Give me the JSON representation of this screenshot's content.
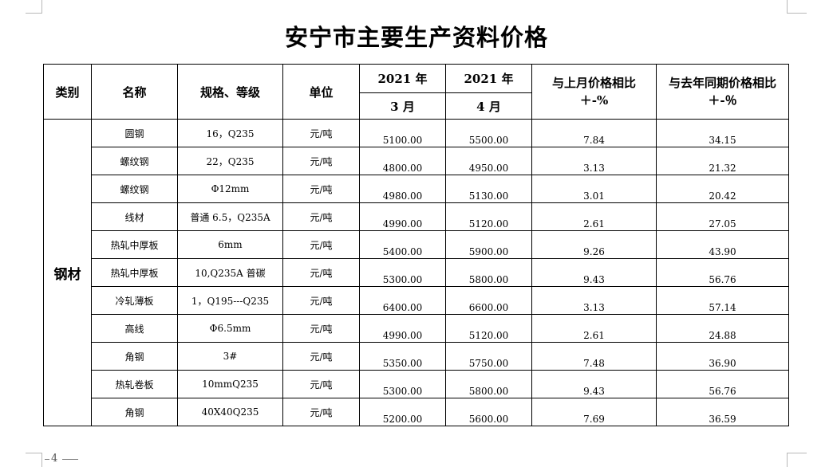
{
  "title": "安宁市主要生产资料价格",
  "header": {
    "category": "类别",
    "name": "名称",
    "spec": "规格、等级",
    "unit": "单位",
    "year_a": "2021 年",
    "year_b": "2021 年",
    "month_a": "3 月",
    "month_b": "4 月",
    "mom_line1": "与上月价格相比",
    "mom_line2": "＋-%",
    "yoy_line1": "与去年同期价格相比",
    "yoy_line2": "＋-％"
  },
  "category": "钢材",
  "rows": [
    {
      "name": "圆钢",
      "spec": "16，Q235",
      "unit": "元/吨",
      "mar": "5100.00",
      "apr": "5500.00",
      "mom": "7.84",
      "yoy": "34.15"
    },
    {
      "name": "螺纹钢",
      "spec": "22，Q235",
      "unit": "元/吨",
      "mar": "4800.00",
      "apr": "4950.00",
      "mom": "3.13",
      "yoy": "21.32"
    },
    {
      "name": "螺纹钢",
      "spec": "Φ12mm",
      "unit": "元/吨",
      "mar": "4980.00",
      "apr": "5130.00",
      "mom": "3.01",
      "yoy": "20.42"
    },
    {
      "name": "线材",
      "spec": "普通 6.5，Q235A",
      "unit": "元/吨",
      "mar": "4990.00",
      "apr": "5120.00",
      "mom": "2.61",
      "yoy": "27.05"
    },
    {
      "name": "热轧中厚板",
      "spec": "6mm",
      "unit": "元/吨",
      "mar": "5400.00",
      "apr": "5900.00",
      "mom": "9.26",
      "yoy": "43.90"
    },
    {
      "name": "热轧中厚板",
      "spec": "10,Q235A 普碳",
      "unit": "元/吨",
      "mar": "5300.00",
      "apr": "5800.00",
      "mom": "9.43",
      "yoy": "56.76"
    },
    {
      "name": "冷轧薄板",
      "spec": "1，Q195---Q235",
      "unit": "元/吨",
      "mar": "6400.00",
      "apr": "6600.00",
      "mom": "3.13",
      "yoy": "57.14"
    },
    {
      "name": "高线",
      "spec": "Φ6.5mm",
      "unit": "元/吨",
      "mar": "4990.00",
      "apr": "5120.00",
      "mom": "2.61",
      "yoy": "24.88"
    },
    {
      "name": "角钢",
      "spec": "3#",
      "unit": "元/吨",
      "mar": "5350.00",
      "apr": "5750.00",
      "mom": "7.48",
      "yoy": "36.90"
    },
    {
      "name": "热轧卷板",
      "spec": "10mmQ235",
      "unit": "元/吨",
      "mar": "5300.00",
      "apr": "5800.00",
      "mom": "9.43",
      "yoy": "56.76"
    },
    {
      "name": "角钢",
      "spec": "40X40Q235",
      "unit": "元/吨",
      "mar": "5200.00",
      "apr": "5600.00",
      "mom": "7.69",
      "yoy": "36.59"
    }
  ],
  "footer": {
    "page_number": "4"
  }
}
